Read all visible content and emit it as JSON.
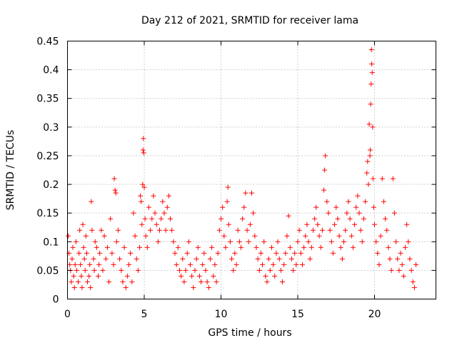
{
  "chart_data": {
    "type": "scatter",
    "title": "Day 212 of 2021, SRMTID for receiver lama",
    "xlabel": "GPS time / hours",
    "ylabel": "SRMTID / TECUs",
    "xlim": [
      0,
      24
    ],
    "ylim": [
      0,
      0.45
    ],
    "x_ticks": [
      0,
      5,
      10,
      15,
      20
    ],
    "x_tick_labels": [
      "0",
      "5",
      "10",
      "15",
      "20"
    ],
    "y_ticks": [
      0,
      0.05,
      0.1,
      0.15,
      0.2,
      0.25,
      0.3,
      0.35,
      0.4,
      0.45
    ],
    "y_tick_labels": [
      "0",
      "0.05",
      "0.1",
      "0.15",
      "0.2",
      "0.25",
      "0.3",
      "0.35",
      "0.4",
      "0.45"
    ],
    "grid": true,
    "marker": "+",
    "color": "#ff0000",
    "series": [
      {
        "name": "SRMTID",
        "points": [
          [
            0.05,
            0.11
          ],
          [
            0.1,
            0.08
          ],
          [
            0.15,
            0.06
          ],
          [
            0.2,
            0.05
          ],
          [
            0.25,
            0.03
          ],
          [
            0.3,
            0.07
          ],
          [
            0.35,
            0.09
          ],
          [
            0.4,
            0.04
          ],
          [
            0.45,
            0.02
          ],
          [
            0.5,
            0.06
          ],
          [
            0.55,
            0.1
          ],
          [
            0.6,
            0.05
          ],
          [
            0.7,
            0.03
          ],
          [
            0.75,
            0.08
          ],
          [
            0.8,
            0.12
          ],
          [
            0.85,
            0.06
          ],
          [
            0.9,
            0.04
          ],
          [
            0.95,
            0.02
          ],
          [
            1.0,
            0.13
          ],
          [
            1.05,
            0.09
          ],
          [
            1.1,
            0.07
          ],
          [
            1.15,
            0.05
          ],
          [
            1.2,
            0.11
          ],
          [
            1.25,
            0.08
          ],
          [
            1.3,
            0.03
          ],
          [
            1.4,
            0.04
          ],
          [
            1.45,
            0.06
          ],
          [
            1.5,
            0.02
          ],
          [
            1.55,
            0.17
          ],
          [
            1.6,
            0.12
          ],
          [
            1.7,
            0.07
          ],
          [
            1.75,
            0.05
          ],
          [
            1.8,
            0.1
          ],
          [
            1.9,
            0.09
          ],
          [
            2.0,
            0.04
          ],
          [
            2.05,
            0.06
          ],
          [
            2.1,
            0.08
          ],
          [
            2.2,
            0.12
          ],
          [
            2.3,
            0.05
          ],
          [
            2.4,
            0.11
          ],
          [
            2.5,
            0.07
          ],
          [
            2.6,
            0.09
          ],
          [
            2.7,
            0.03
          ],
          [
            2.8,
            0.14
          ],
          [
            2.9,
            0.08
          ],
          [
            3.0,
            0.06
          ],
          [
            3.05,
            0.21
          ],
          [
            3.1,
            0.19
          ],
          [
            3.15,
            0.185
          ],
          [
            3.2,
            0.1
          ],
          [
            3.3,
            0.12
          ],
          [
            3.4,
            0.07
          ],
          [
            3.5,
            0.05
          ],
          [
            3.6,
            0.03
          ],
          [
            3.7,
            0.09
          ],
          [
            3.8,
            0.02
          ],
          [
            3.9,
            0.04
          ],
          [
            4.0,
            0.06
          ],
          [
            4.1,
            0.08
          ],
          [
            4.2,
            0.03
          ],
          [
            4.3,
            0.15
          ],
          [
            4.4,
            0.11
          ],
          [
            4.5,
            0.07
          ],
          [
            4.6,
            0.05
          ],
          [
            4.7,
            0.09
          ],
          [
            4.75,
            0.18
          ],
          [
            4.8,
            0.17
          ],
          [
            4.85,
            0.13
          ],
          [
            4.9,
            0.2
          ],
          [
            4.92,
            0.26
          ],
          [
            4.95,
            0.28
          ],
          [
            4.97,
            0.255
          ],
          [
            5.0,
            0.195
          ],
          [
            5.05,
            0.14
          ],
          [
            5.1,
            0.11
          ],
          [
            5.2,
            0.09
          ],
          [
            5.3,
            0.16
          ],
          [
            5.4,
            0.12
          ],
          [
            5.5,
            0.14
          ],
          [
            5.6,
            0.18
          ],
          [
            5.7,
            0.15
          ],
          [
            5.8,
            0.13
          ],
          [
            5.9,
            0.1
          ],
          [
            6.0,
            0.12
          ],
          [
            6.1,
            0.14
          ],
          [
            6.2,
            0.17
          ],
          [
            6.3,
            0.15
          ],
          [
            6.4,
            0.12
          ],
          [
            6.5,
            0.16
          ],
          [
            6.6,
            0.18
          ],
          [
            6.7,
            0.14
          ],
          [
            6.8,
            0.12
          ],
          [
            6.9,
            0.1
          ],
          [
            7.0,
            0.08
          ],
          [
            7.1,
            0.06
          ],
          [
            7.2,
            0.09
          ],
          [
            7.3,
            0.05
          ],
          [
            7.4,
            0.04
          ],
          [
            7.5,
            0.07
          ],
          [
            7.6,
            0.03
          ],
          [
            7.7,
            0.05
          ],
          [
            7.8,
            0.08
          ],
          [
            7.9,
            0.1
          ],
          [
            8.0,
            0.06
          ],
          [
            8.1,
            0.04
          ],
          [
            8.2,
            0.02
          ],
          [
            8.3,
            0.05
          ],
          [
            8.4,
            0.07
          ],
          [
            8.5,
            0.09
          ],
          [
            8.6,
            0.04
          ],
          [
            8.7,
            0.03
          ],
          [
            8.8,
            0.06
          ],
          [
            8.9,
            0.08
          ],
          [
            9.0,
            0.05
          ],
          [
            9.1,
            0.03
          ],
          [
            9.2,
            0.02
          ],
          [
            9.3,
            0.07
          ],
          [
            9.4,
            0.09
          ],
          [
            9.5,
            0.04
          ],
          [
            9.6,
            0.06
          ],
          [
            9.7,
            0.03
          ],
          [
            9.8,
            0.08
          ],
          [
            9.9,
            0.12
          ],
          [
            10.0,
            0.14
          ],
          [
            10.1,
            0.16
          ],
          [
            10.2,
            0.11
          ],
          [
            10.3,
            0.09
          ],
          [
            10.4,
            0.17
          ],
          [
            10.45,
            0.195
          ],
          [
            10.5,
            0.13
          ],
          [
            10.6,
            0.1
          ],
          [
            10.7,
            0.07
          ],
          [
            10.8,
            0.05
          ],
          [
            10.9,
            0.08
          ],
          [
            11.0,
            0.06
          ],
          [
            11.1,
            0.12
          ],
          [
            11.2,
            0.1
          ],
          [
            11.3,
            0.09
          ],
          [
            11.4,
            0.14
          ],
          [
            11.5,
            0.16
          ],
          [
            11.6,
            0.185
          ],
          [
            11.7,
            0.12
          ],
          [
            11.8,
            0.1
          ],
          [
            11.9,
            0.13
          ],
          [
            12.0,
            0.185
          ],
          [
            12.1,
            0.15
          ],
          [
            12.2,
            0.11
          ],
          [
            12.3,
            0.09
          ],
          [
            12.4,
            0.07
          ],
          [
            12.5,
            0.05
          ],
          [
            12.6,
            0.08
          ],
          [
            12.7,
            0.06
          ],
          [
            12.8,
            0.1
          ],
          [
            12.9,
            0.04
          ],
          [
            13.0,
            0.03
          ],
          [
            13.1,
            0.07
          ],
          [
            13.2,
            0.05
          ],
          [
            13.3,
            0.09
          ],
          [
            13.4,
            0.06
          ],
          [
            13.5,
            0.04
          ],
          [
            13.6,
            0.08
          ],
          [
            13.7,
            0.1
          ],
          [
            13.8,
            0.07
          ],
          [
            13.9,
            0.05
          ],
          [
            14.0,
            0.03
          ],
          [
            14.1,
            0.06
          ],
          [
            14.2,
            0.08
          ],
          [
            14.3,
            0.11
          ],
          [
            14.4,
            0.145
          ],
          [
            14.5,
            0.09
          ],
          [
            14.6,
            0.07
          ],
          [
            14.7,
            0.05
          ],
          [
            14.8,
            0.08
          ],
          [
            14.9,
            0.06
          ],
          [
            15.0,
            0.1
          ],
          [
            15.1,
            0.12
          ],
          [
            15.2,
            0.08
          ],
          [
            15.3,
            0.06
          ],
          [
            15.4,
            0.09
          ],
          [
            15.5,
            0.11
          ],
          [
            15.6,
            0.13
          ],
          [
            15.7,
            0.1
          ],
          [
            15.8,
            0.07
          ],
          [
            15.9,
            0.09
          ],
          [
            16.0,
            0.12
          ],
          [
            16.1,
            0.14
          ],
          [
            16.2,
            0.16
          ],
          [
            16.3,
            0.13
          ],
          [
            16.4,
            0.11
          ],
          [
            16.5,
            0.09
          ],
          [
            16.6,
            0.12
          ],
          [
            16.7,
            0.19
          ],
          [
            16.75,
            0.225
          ],
          [
            16.8,
            0.25
          ],
          [
            16.9,
            0.17
          ],
          [
            17.0,
            0.15
          ],
          [
            17.1,
            0.12
          ],
          [
            17.2,
            0.1
          ],
          [
            17.3,
            0.08
          ],
          [
            17.4,
            0.13
          ],
          [
            17.5,
            0.16
          ],
          [
            17.6,
            0.14
          ],
          [
            17.7,
            0.11
          ],
          [
            17.8,
            0.09
          ],
          [
            17.9,
            0.07
          ],
          [
            18.0,
            0.1
          ],
          [
            18.1,
            0.12
          ],
          [
            18.2,
            0.15
          ],
          [
            18.3,
            0.17
          ],
          [
            18.4,
            0.14
          ],
          [
            18.5,
            0.11
          ],
          [
            18.6,
            0.09
          ],
          [
            18.7,
            0.13
          ],
          [
            18.8,
            0.16
          ],
          [
            18.9,
            0.18
          ],
          [
            19.0,
            0.15
          ],
          [
            19.1,
            0.12
          ],
          [
            19.2,
            0.1
          ],
          [
            19.3,
            0.14
          ],
          [
            19.4,
            0.17
          ],
          [
            19.5,
            0.22
          ],
          [
            19.55,
            0.24
          ],
          [
            19.6,
            0.2
          ],
          [
            19.65,
            0.305
          ],
          [
            19.7,
            0.25
          ],
          [
            19.72,
            0.26
          ],
          [
            19.75,
            0.34
          ],
          [
            19.78,
            0.375
          ],
          [
            19.8,
            0.435
          ],
          [
            19.82,
            0.41
          ],
          [
            19.85,
            0.395
          ],
          [
            19.88,
            0.3
          ],
          [
            19.9,
            0.21
          ],
          [
            19.95,
            0.16
          ],
          [
            20.0,
            0.13
          ],
          [
            20.1,
            0.1
          ],
          [
            20.2,
            0.08
          ],
          [
            20.3,
            0.06
          ],
          [
            20.4,
            0.11
          ],
          [
            20.5,
            0.21
          ],
          [
            20.6,
            0.17
          ],
          [
            20.7,
            0.14
          ],
          [
            20.8,
            0.12
          ],
          [
            20.9,
            0.09
          ],
          [
            21.0,
            0.07
          ],
          [
            21.1,
            0.05
          ],
          [
            21.2,
            0.21
          ],
          [
            21.3,
            0.15
          ],
          [
            21.4,
            0.1
          ],
          [
            21.5,
            0.07
          ],
          [
            21.6,
            0.05
          ],
          [
            21.7,
            0.08
          ],
          [
            21.8,
            0.06
          ],
          [
            21.9,
            0.04
          ],
          [
            22.0,
            0.09
          ],
          [
            22.1,
            0.13
          ],
          [
            22.2,
            0.1
          ],
          [
            22.3,
            0.07
          ],
          [
            22.4,
            0.05
          ],
          [
            22.5,
            0.03
          ],
          [
            22.6,
            0.02
          ],
          [
            22.7,
            0.06
          ]
        ]
      }
    ]
  }
}
